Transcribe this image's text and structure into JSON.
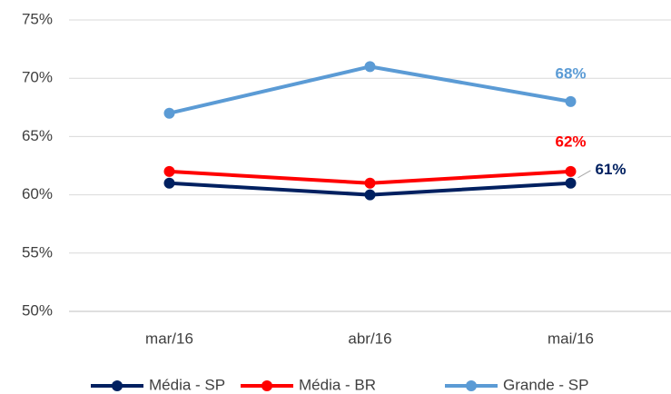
{
  "chart_data": {
    "type": "line",
    "categories": [
      "mar/16",
      "abr/16",
      "mai/16"
    ],
    "series": [
      {
        "name": "Média - SP",
        "color": "#002060",
        "values": [
          61,
          60,
          61
        ],
        "value_labels": [
          null,
          null,
          "61%"
        ]
      },
      {
        "name": "Média - BR",
        "color": "#ff0000",
        "values": [
          62,
          61,
          62
        ],
        "value_labels": [
          null,
          null,
          "62%"
        ]
      },
      {
        "name": "Grande - SP",
        "color": "#5b9bd5",
        "values": [
          67,
          71,
          68
        ],
        "value_labels": [
          null,
          null,
          "68%"
        ]
      }
    ],
    "ylim": [
      50,
      75
    ],
    "yticks": [
      {
        "value": 50,
        "label": "50%"
      },
      {
        "value": 55,
        "label": "55%"
      },
      {
        "value": 60,
        "label": "60%"
      },
      {
        "value": 65,
        "label": "65%"
      },
      {
        "value": 70,
        "label": "70%"
      },
      {
        "value": 75,
        "label": "75%"
      }
    ],
    "grid": true,
    "legend": "bottom"
  }
}
